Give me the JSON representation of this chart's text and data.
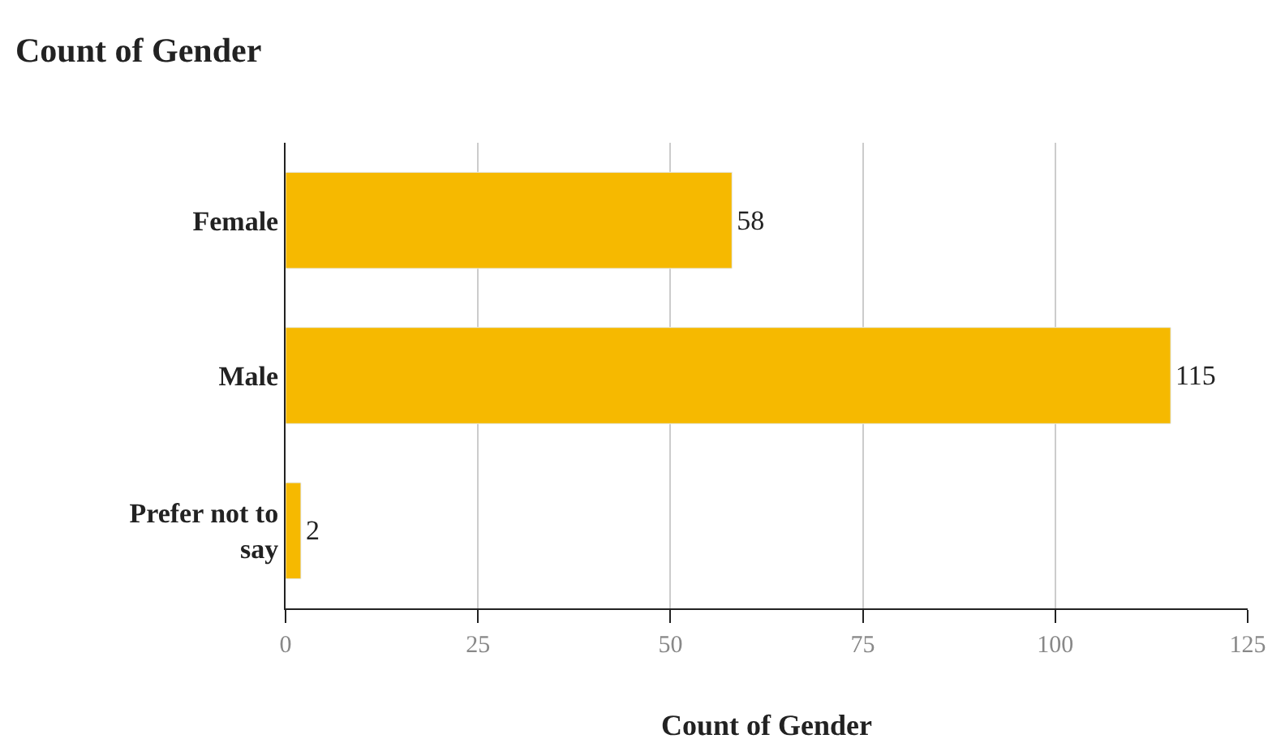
{
  "chart_data": {
    "type": "bar",
    "orientation": "horizontal",
    "title": "Count of Gender",
    "xlabel": "Count of Gender",
    "categories": [
      "Female",
      "Male",
      "Prefer not to say"
    ],
    "values": [
      58,
      115,
      2
    ],
    "color": "#f6b900",
    "data_labels": true,
    "xlim": [
      0,
      125
    ],
    "xticks": [
      0,
      25,
      50,
      75,
      100,
      125
    ],
    "grid": "x",
    "legend": false
  }
}
